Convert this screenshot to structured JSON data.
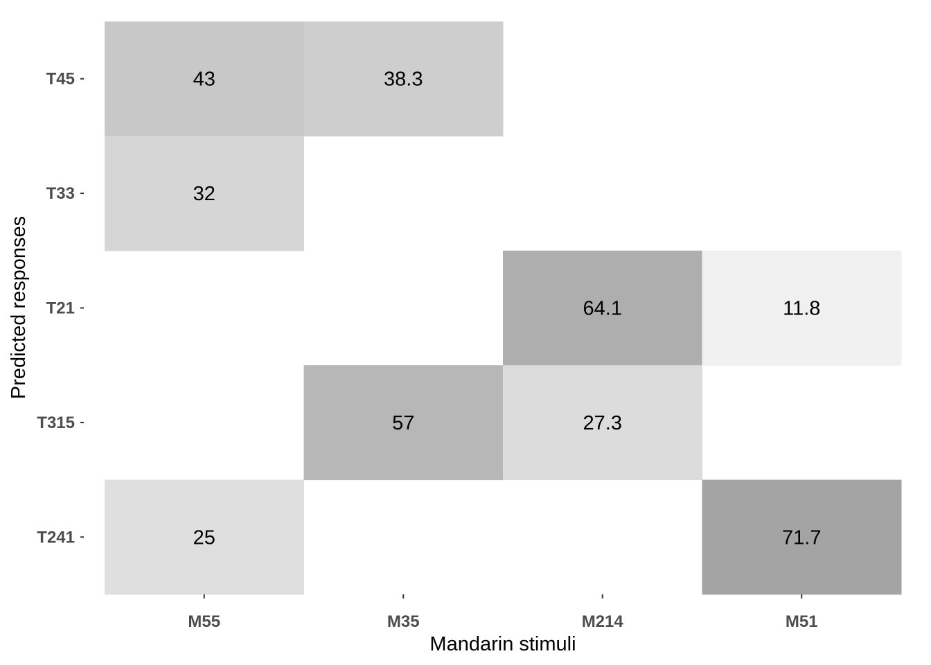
{
  "chart_data": {
    "type": "heatmap",
    "title": "",
    "xlabel": "Mandarin stimuli",
    "ylabel": "Predicted responses",
    "x_categories": [
      "M55",
      "M35",
      "M214",
      "M51"
    ],
    "y_categories": [
      "T45",
      "T33",
      "T21",
      "T315",
      "T241"
    ],
    "cells": [
      {
        "x": "M55",
        "y": "T45",
        "value": 43,
        "label": "43"
      },
      {
        "x": "M35",
        "y": "T45",
        "value": 38.3,
        "label": "38.3"
      },
      {
        "x": "M55",
        "y": "T33",
        "value": 32,
        "label": "32"
      },
      {
        "x": "M214",
        "y": "T21",
        "value": 64.1,
        "label": "64.1"
      },
      {
        "x": "M51",
        "y": "T21",
        "value": 11.8,
        "label": "11.8"
      },
      {
        "x": "M35",
        "y": "T315",
        "value": 57,
        "label": "57"
      },
      {
        "x": "M214",
        "y": "T315",
        "value": 27.3,
        "label": "27.3"
      },
      {
        "x": "M55",
        "y": "T241",
        "value": 25,
        "label": "25"
      },
      {
        "x": "M51",
        "y": "T241",
        "value": 71.7,
        "label": "71.7"
      }
    ],
    "color_scale": {
      "low": "#ffffff",
      "high": "#808080"
    },
    "grid": false,
    "legend": "none"
  }
}
